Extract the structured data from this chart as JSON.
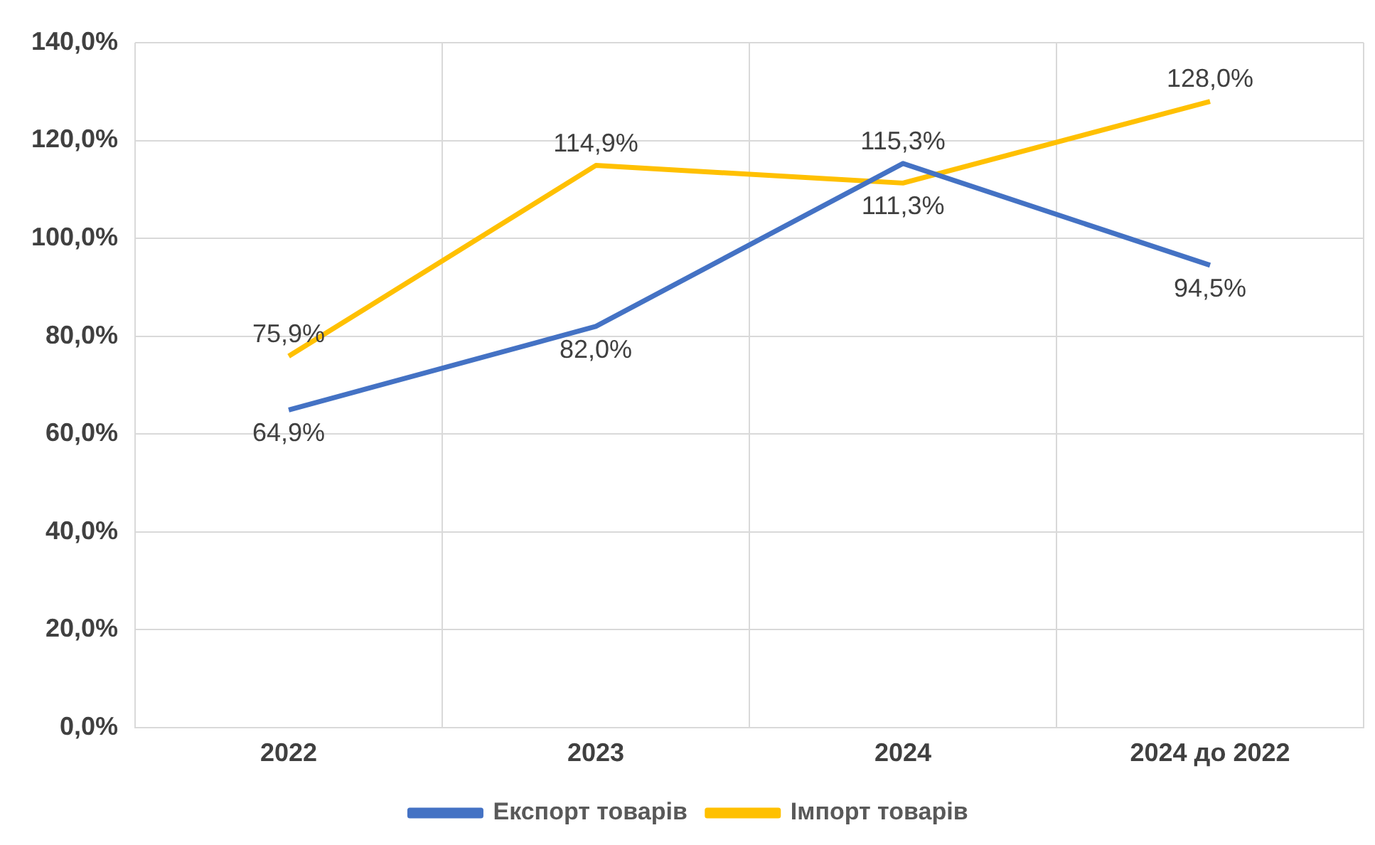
{
  "chart_data": {
    "type": "line",
    "categories": [
      "2022",
      "2023",
      "2024",
      "2024 до 2022"
    ],
    "series": [
      {
        "name": "Експорт товарів",
        "color": "#4472c4",
        "values": [
          64.9,
          82.0,
          115.3,
          94.5
        ],
        "value_labels": [
          "64,9%",
          "82,0%",
          "115,3%",
          "94,5%"
        ]
      },
      {
        "name": "Імпорт товарів",
        "color": "#ffc000",
        "values": [
          75.9,
          114.9,
          111.3,
          128.0
        ],
        "value_labels": [
          "75,9%",
          "114,9%",
          "111,3%",
          "128,0%"
        ]
      }
    ],
    "ylim": [
      0,
      140
    ],
    "yticks": [
      {
        "value": 0,
        "label": "0,0%"
      },
      {
        "value": 20,
        "label": "20,0%"
      },
      {
        "value": 40,
        "label": "40,0%"
      },
      {
        "value": 60,
        "label": "60,0%"
      },
      {
        "value": 80,
        "label": "80,0%"
      },
      {
        "value": 100,
        "label": "100,0%"
      },
      {
        "value": 120,
        "label": "120,0%"
      },
      {
        "value": 140,
        "label": "140,0%"
      }
    ],
    "grid": true,
    "legend": "bottom",
    "marker": "none",
    "line_style": "solid"
  }
}
